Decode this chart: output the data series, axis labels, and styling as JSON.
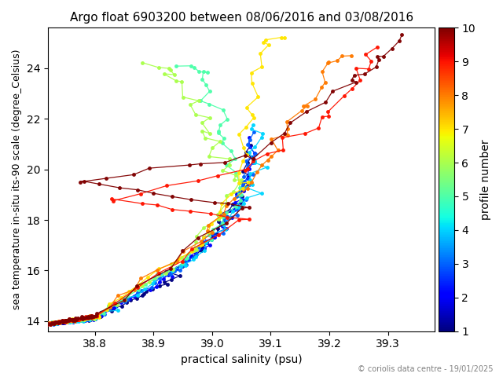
{
  "title": "Argo float 6903200 between 08/06/2016 and 03/08/2016",
  "xlabel": "practical salinity (psu)",
  "ylabel": "sea temperature in-situ its-90 scale (degree_Celsius)",
  "cbar_label": "profile number",
  "copyright": "© coriolis data centre - 19/01/2025",
  "xlim": [
    38.72,
    39.38
  ],
  "ylim": [
    13.6,
    25.6
  ],
  "xticks": [
    38.8,
    38.9,
    39.0,
    39.1,
    39.2,
    39.3
  ],
  "yticks": [
    14,
    16,
    18,
    20,
    22,
    24
  ],
  "cmap": "jet",
  "clim": [
    1,
    10
  ],
  "title_fontsize": 11,
  "label_fontsize": 10,
  "ylabel_fontsize": 9,
  "marker_size": 2.5,
  "line_width": 0.9,
  "figsize": [
    6.4,
    4.8
  ],
  "dpi": 100
}
